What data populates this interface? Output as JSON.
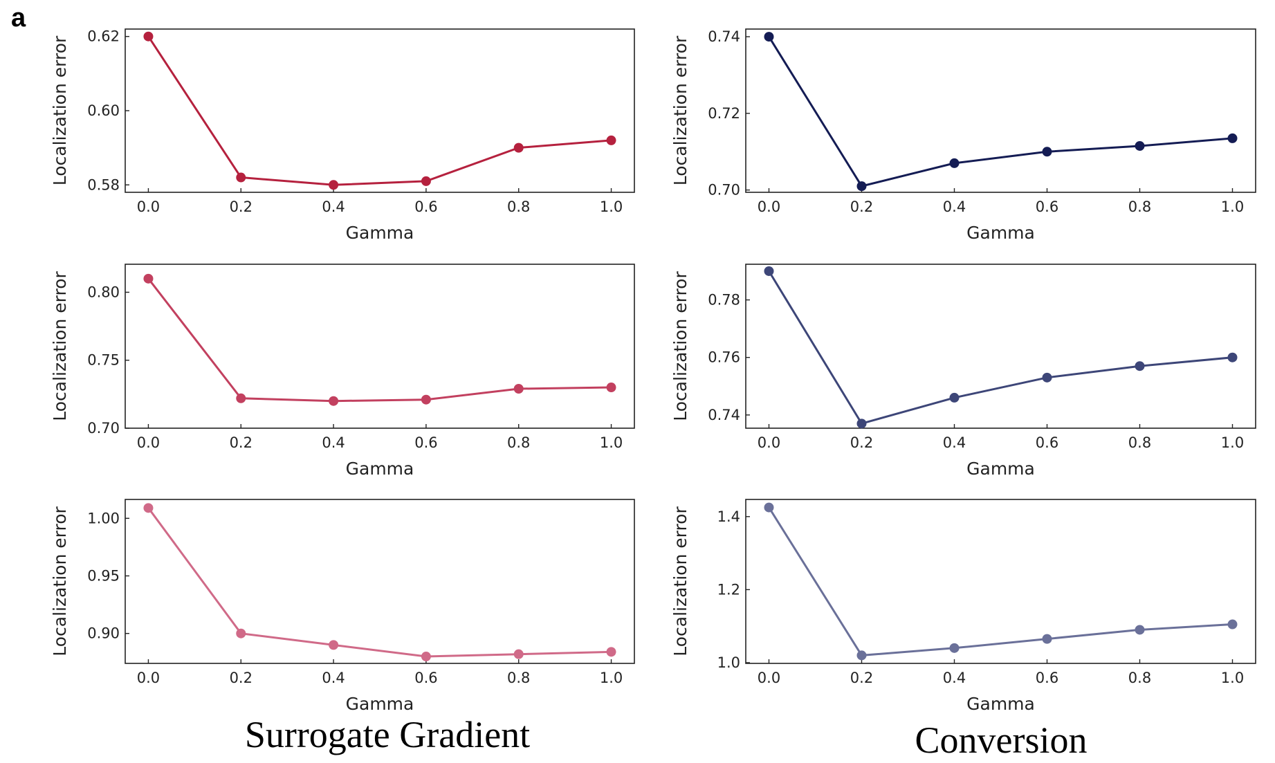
{
  "panel_letter": "a",
  "captions": {
    "left": "Surrogate Gradient",
    "right": "Conversion"
  },
  "chart_data": [
    {
      "type": "line",
      "xlabel": "Gamma",
      "ylabel": "Localization error",
      "x": [
        0.0,
        0.2,
        0.4,
        0.6,
        0.8,
        1.0
      ],
      "xticks": [
        "0.0",
        "0.2",
        "0.4",
        "0.6",
        "0.8",
        "1.0"
      ],
      "xlim": [
        -0.05,
        1.05
      ],
      "values": [
        0.62,
        0.582,
        0.58,
        0.581,
        0.59,
        0.592
      ],
      "ylim": [
        0.578,
        0.622
      ],
      "yticks": [
        0.58,
        0.6,
        0.62
      ],
      "ytick_labels": [
        "0.58",
        "0.60",
        "0.62"
      ],
      "color": "#b5213e",
      "column": "left",
      "row": 0
    },
    {
      "type": "line",
      "xlabel": "Gamma",
      "ylabel": "Localization error",
      "x": [
        0.0,
        0.2,
        0.4,
        0.6,
        0.8,
        1.0
      ],
      "xticks": [
        "0.0",
        "0.2",
        "0.4",
        "0.6",
        "0.8",
        "1.0"
      ],
      "xlim": [
        -0.05,
        1.05
      ],
      "values": [
        0.81,
        0.722,
        0.72,
        0.721,
        0.729,
        0.73
      ],
      "ylim": [
        0.7,
        0.8206
      ],
      "yticks": [
        0.7,
        0.75,
        0.8
      ],
      "ytick_labels": [
        "0.70",
        "0.75",
        "0.80"
      ],
      "color": "#c2405f",
      "column": "left",
      "row": 1
    },
    {
      "type": "line",
      "xlabel": "Gamma",
      "ylabel": "Localization error",
      "x": [
        0.0,
        0.2,
        0.4,
        0.6,
        0.8,
        1.0
      ],
      "xticks": [
        "0.0",
        "0.2",
        "0.4",
        "0.6",
        "0.8",
        "1.0"
      ],
      "xlim": [
        -0.05,
        1.05
      ],
      "values": [
        1.009,
        0.9,
        0.89,
        0.88,
        0.882,
        0.884
      ],
      "ylim": [
        0.874,
        1.0164
      ],
      "yticks": [
        0.9,
        0.95,
        1.0
      ],
      "ytick_labels": [
        "0.90",
        "0.95",
        "1.00"
      ],
      "color": "#d06a88",
      "column": "left",
      "row": 2
    },
    {
      "type": "line",
      "xlabel": "Gamma",
      "ylabel": "Localization error",
      "x": [
        0.0,
        0.2,
        0.4,
        0.6,
        0.8,
        1.0
      ],
      "xticks": [
        "0.0",
        "0.2",
        "0.4",
        "0.6",
        "0.8",
        "1.0"
      ],
      "xlim": [
        -0.05,
        1.05
      ],
      "values": [
        0.74,
        0.701,
        0.707,
        0.71,
        0.7115,
        0.7135
      ],
      "ylim": [
        0.6994,
        0.742
      ],
      "yticks": [
        0.7,
        0.72,
        0.74
      ],
      "ytick_labels": [
        "0.70",
        "0.72",
        "0.74"
      ],
      "color": "#141c54",
      "column": "right",
      "row": 0
    },
    {
      "type": "line",
      "xlabel": "Gamma",
      "ylabel": "Localization error",
      "x": [
        0.0,
        0.2,
        0.4,
        0.6,
        0.8,
        1.0
      ],
      "xticks": [
        "0.0",
        "0.2",
        "0.4",
        "0.6",
        "0.8",
        "1.0"
      ],
      "xlim": [
        -0.05,
        1.05
      ],
      "values": [
        0.79,
        0.737,
        0.746,
        0.753,
        0.757,
        0.76
      ],
      "ylim": [
        0.7354,
        0.7924
      ],
      "yticks": [
        0.74,
        0.76,
        0.78
      ],
      "ytick_labels": [
        "0.74",
        "0.76",
        "0.78"
      ],
      "color": "#3d4678",
      "column": "right",
      "row": 1
    },
    {
      "type": "line",
      "xlabel": "Gamma",
      "ylabel": "Localization error",
      "x": [
        0.0,
        0.2,
        0.4,
        0.6,
        0.8,
        1.0
      ],
      "xticks": [
        "0.0",
        "0.2",
        "0.4",
        "0.6",
        "0.8",
        "1.0"
      ],
      "xlim": [
        -0.05,
        1.05
      ],
      "values": [
        1.425,
        1.02,
        1.04,
        1.065,
        1.09,
        1.105
      ],
      "ylim": [
        0.998,
        1.447
      ],
      "yticks": [
        1.0,
        1.2,
        1.4
      ],
      "ytick_labels": [
        "1.0",
        "1.2",
        "1.4"
      ],
      "color": "#6a7099",
      "column": "right",
      "row": 2
    }
  ]
}
